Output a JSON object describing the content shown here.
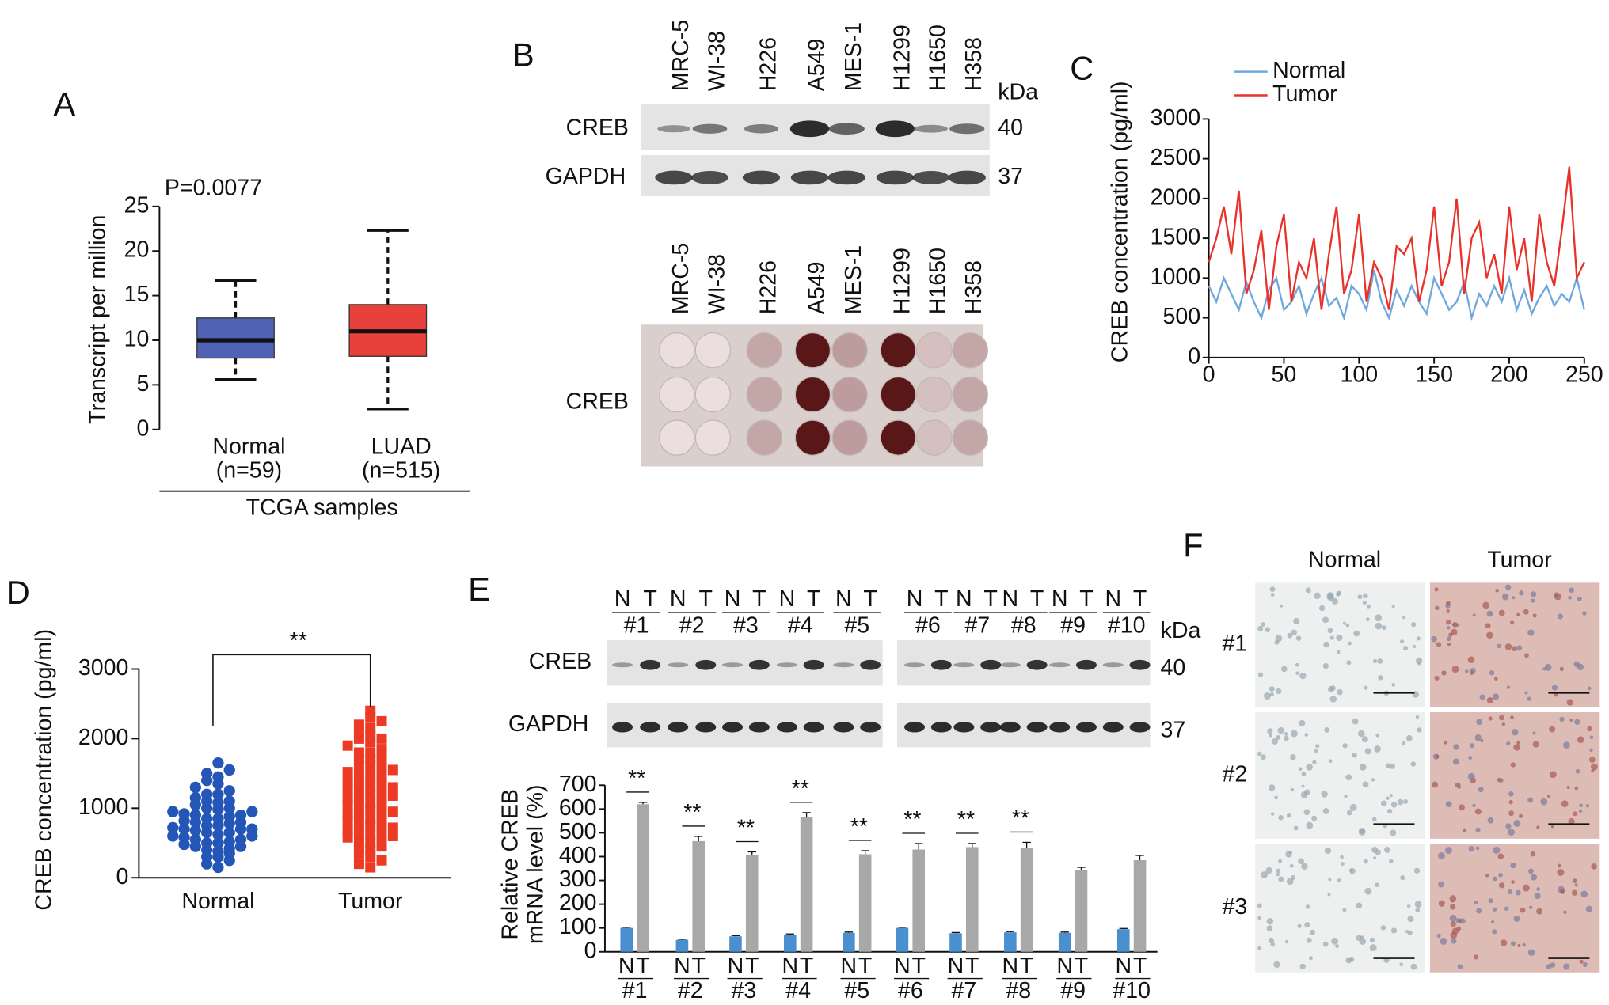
{
  "chart_data": [
    {
      "type": "box",
      "panel": "A",
      "annotation": "P=0.0077",
      "ylabel": "Transcript per million",
      "categories": [
        "Normal",
        "LUAD"
      ],
      "category_notes": [
        "(n=59)",
        "(n=515)"
      ],
      "xlabel": "TCGA samples",
      "boxes": [
        {
          "min": 5.6,
          "q1": 8,
          "median": 10,
          "q3": 12.5,
          "max": 16.7,
          "color": "#4f62b4"
        },
        {
          "min": 2.3,
          "q1": 8.2,
          "median": 11,
          "q3": 14,
          "max": 22.3,
          "color": "#e8403a"
        }
      ],
      "ylim": [
        0,
        25
      ],
      "yticks": [
        0,
        5,
        10,
        15,
        20,
        25
      ]
    },
    {
      "type": "line",
      "panel": "C",
      "ylabel": "CREB concentration (pg/ml)",
      "x": [
        0,
        5,
        10,
        15,
        20,
        25,
        30,
        35,
        40,
        45,
        50,
        55,
        60,
        65,
        70,
        75,
        80,
        85,
        90,
        95,
        100,
        105,
        110,
        115,
        120,
        125,
        130,
        135,
        140,
        145,
        150,
        155,
        160,
        165,
        170,
        175,
        180,
        185,
        190,
        195,
        200,
        205,
        210,
        215,
        220,
        225,
        230,
        235,
        240,
        245,
        250
      ],
      "series": [
        {
          "name": "Normal",
          "color": "#6fa8dc",
          "values": [
            900,
            700,
            1000,
            800,
            600,
            950,
            700,
            500,
            850,
            1000,
            600,
            700,
            900,
            550,
            800,
            1000,
            650,
            750,
            500,
            900,
            800,
            600,
            1100,
            700,
            500,
            850,
            650,
            900,
            700,
            550,
            1000,
            800,
            600,
            700,
            950,
            500,
            800,
            650,
            900,
            700,
            1000,
            600,
            850,
            550,
            750,
            900,
            650,
            800,
            700,
            1000,
            600
          ]
        },
        {
          "name": "Tumor",
          "color": "#e8322a",
          "values": [
            1200,
            1500,
            1900,
            1300,
            2100,
            800,
            1100,
            1600,
            600,
            1400,
            1800,
            700,
            1200,
            1000,
            1500,
            600,
            1300,
            1900,
            800,
            1100,
            1800,
            700,
            1200,
            1000,
            600,
            1400,
            1300,
            1500,
            700,
            1100,
            1900,
            900,
            1200,
            2000,
            800,
            1500,
            1700,
            1000,
            1300,
            800,
            1900,
            1100,
            1500,
            700,
            1800,
            1200,
            900,
            1600,
            2400,
            1000,
            1200
          ]
        }
      ],
      "xlim": [
        0,
        250
      ],
      "xticks": [
        0,
        50,
        100,
        150,
        200,
        250
      ],
      "ylim": [
        0,
        3000
      ],
      "yticks": [
        0,
        500,
        1000,
        1500,
        2000,
        2500,
        3000
      ],
      "legend": "top-left"
    },
    {
      "type": "dotplot",
      "panel": "D",
      "ylabel": "CREB concentration (pg/ml)",
      "annotation": "**",
      "categories": [
        "Normal",
        "Tumor"
      ],
      "groups": [
        {
          "color": "#2456b8",
          "marker": "circle",
          "values": [
            150,
            200,
            250,
            300,
            300,
            350,
            380,
            400,
            420,
            450,
            450,
            480,
            500,
            500,
            520,
            550,
            550,
            580,
            600,
            600,
            620,
            650,
            650,
            680,
            700,
            700,
            700,
            720,
            750,
            750,
            780,
            800,
            800,
            820,
            850,
            850,
            880,
            900,
            900,
            920,
            950,
            950,
            980,
            1000,
            1000,
            1050,
            1080,
            1100,
            1100,
            1150,
            1200,
            1200,
            1250,
            1300,
            1350,
            1400,
            1450,
            1500,
            1550,
            1650
          ]
        },
        {
          "color": "#ec3a24",
          "marker": "square",
          "values": [
            150,
            200,
            250,
            300,
            350,
            400,
            420,
            450,
            500,
            520,
            550,
            580,
            600,
            620,
            650,
            680,
            700,
            720,
            750,
            780,
            800,
            820,
            850,
            880,
            900,
            920,
            950,
            980,
            1000,
            1000,
            1050,
            1080,
            1100,
            1120,
            1150,
            1180,
            1200,
            1220,
            1250,
            1280,
            1300,
            1320,
            1350,
            1380,
            1400,
            1450,
            1480,
            1500,
            1520,
            1550,
            1600,
            1620,
            1650,
            1700,
            1720,
            1750,
            1800,
            1800,
            1850,
            1900,
            1950,
            2000,
            2000,
            2050,
            2100,
            2150,
            2200,
            2250,
            2300,
            2400
          ]
        }
      ],
      "ylim": [
        0,
        3000
      ],
      "yticks": [
        0,
        1000,
        2000,
        3000
      ]
    },
    {
      "type": "bar",
      "ylabel": [
        "Relative CREB",
        "mRNA level (%)"
      ],
      "categories": [
        "#1",
        "#2",
        "#3",
        "#4",
        "#5",
        "#6",
        "#7",
        "#8",
        "#9",
        "#10"
      ],
      "series": [
        {
          "name": "N",
          "color": "#4a90d0",
          "values": [
            100,
            50,
            65,
            72,
            80,
            100,
            78,
            82,
            80,
            95
          ],
          "errors": [
            3,
            3,
            3,
            3,
            3,
            3,
            3,
            3,
            3,
            3
          ]
        },
        {
          "name": "T",
          "color": "#a8a8a8",
          "values": [
            620,
            465,
            405,
            565,
            410,
            430,
            440,
            435,
            345,
            385
          ],
          "errors": [
            8,
            20,
            15,
            20,
            15,
            25,
            15,
            25,
            10,
            20
          ]
        }
      ],
      "annotations": [
        {
          "category": 0,
          "text": "**"
        },
        {
          "category": 1,
          "text": "**"
        },
        {
          "category": 2,
          "text": "**"
        },
        {
          "category": 3,
          "text": "**"
        },
        {
          "category": 4,
          "text": "**"
        },
        {
          "category": 5,
          "text": "**"
        },
        {
          "category": 6,
          "text": "**"
        },
        {
          "category": 7,
          "text": "**"
        }
      ],
      "ylim": [
        0,
        700
      ],
      "yticks": [
        0,
        100,
        200,
        300,
        400,
        500,
        600,
        700
      ]
    }
  ],
  "cell_blots": {
    "panel": "B",
    "cell_lines": [
      "MRC-5",
      "WI-38",
      "H226",
      "A549",
      "MES-1",
      "H1299",
      "H1650",
      "H358"
    ],
    "kda": "kDa",
    "rows": [
      {
        "label": "CREB",
        "kda": "40"
      },
      {
        "label": "GAPDH",
        "kda": "37"
      }
    ],
    "plate_label": "CREB"
  },
  "tissue_blots": {
    "panel": "E",
    "lane_labels": [
      "N",
      "T"
    ],
    "samples": [
      "#1",
      "#2",
      "#3",
      "#4",
      "#5",
      "#6",
      "#7",
      "#8",
      "#9",
      "#10"
    ],
    "kda": "kDa",
    "rows": [
      {
        "label": "CREB",
        "kda": "40"
      },
      {
        "label": "GAPDH",
        "kda": "37"
      }
    ]
  },
  "histology": {
    "panel": "F",
    "columns": [
      "Normal",
      "Tumor"
    ],
    "rows": [
      "#1",
      "#2",
      "#3"
    ]
  }
}
